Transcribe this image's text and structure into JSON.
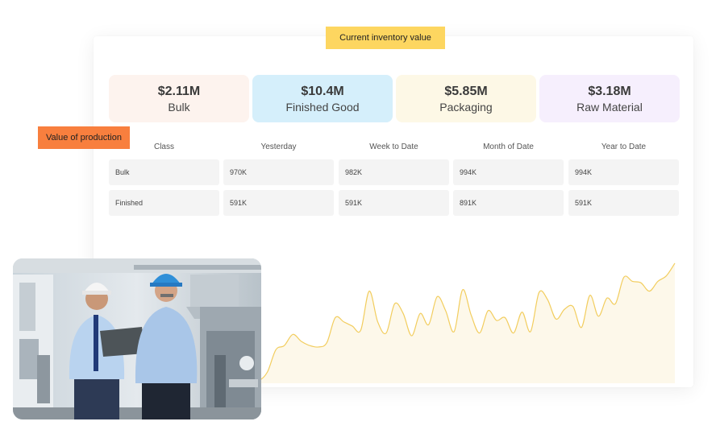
{
  "tags": {
    "inventory": "Current inventory value",
    "production": "Value of production"
  },
  "cards": [
    {
      "value": "$2.11M",
      "label": "Bulk",
      "color": "#fdf3ee"
    },
    {
      "value": "$10.4M",
      "label": "Finished Good",
      "color": "#d5effb"
    },
    {
      "value": "$5.85M",
      "label": "Packaging",
      "color": "#fdf8e6"
    },
    {
      "value": "$3.18M",
      "label": "Raw Material",
      "color": "#f6effd"
    }
  ],
  "table": {
    "headers": [
      "Class",
      "Yesterday",
      "Week to Date",
      "Month of Date",
      "Year to Date"
    ],
    "rows": [
      [
        "Bulk",
        "970K",
        "982K",
        "994K",
        "994K"
      ],
      [
        "Finished",
        "591K",
        "591K",
        "891K",
        "591K"
      ]
    ]
  },
  "chart_data": {
    "type": "area",
    "values": [
      2,
      3,
      2,
      8,
      24,
      27,
      35,
      30,
      27,
      26,
      29,
      47,
      44,
      41,
      38,
      66,
      44,
      36,
      57,
      50,
      34,
      50,
      42,
      62,
      52,
      37,
      67,
      49,
      36,
      52,
      45,
      47,
      36,
      51,
      37,
      65,
      60,
      46,
      53,
      55,
      40,
      63,
      48,
      61,
      57,
      76,
      73,
      72,
      66,
      73,
      77,
      86
    ],
    "colors": {
      "line": "#f2cd5e",
      "fill": "#fdf8ea"
    }
  },
  "photo": {
    "alt": "Two engineers in hard hats reviewing a laptop in a factory",
    "colors": {
      "blue_helmet": "#2f8fd8",
      "white_helmet": "#f5f5f5",
      "shirt": "#a9c6e8"
    }
  }
}
